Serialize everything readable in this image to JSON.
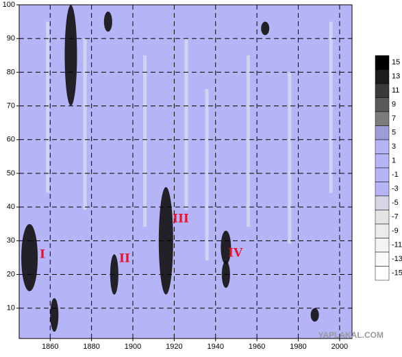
{
  "chart_data": {
    "type": "contour",
    "xlim": [
      1845,
      2006
    ],
    "xticks": [
      1860,
      1880,
      1900,
      1920,
      1940,
      1960,
      1980,
      2000
    ],
    "ylim": [
      1,
      100
    ],
    "yticks": [
      10,
      20,
      30,
      40,
      50,
      60,
      70,
      80,
      90,
      100
    ],
    "grid": true,
    "background": "#b4b4f6",
    "levels": [
      15,
      13,
      11,
      9,
      7,
      5,
      3,
      1,
      -1,
      -3,
      -5,
      -7,
      -9,
      -11,
      -13,
      -15
    ],
    "level_colors": [
      "#000000",
      "#1c1c1c",
      "#3a3a3a",
      "#5a5a5a",
      "#7c7c7c",
      "#9c9cd6",
      "#b4b4f6",
      "#b4b4f6",
      "#b4b4f6",
      "#b4b4f6",
      "#d6d6e6",
      "#e4e4e4",
      "#ececec",
      "#f3f3f3",
      "#f9f9f9",
      "#ffffff"
    ],
    "annotations": [
      "I",
      "II",
      "III",
      "IV"
    ],
    "watermark": "YAPLAKAL.COM"
  }
}
